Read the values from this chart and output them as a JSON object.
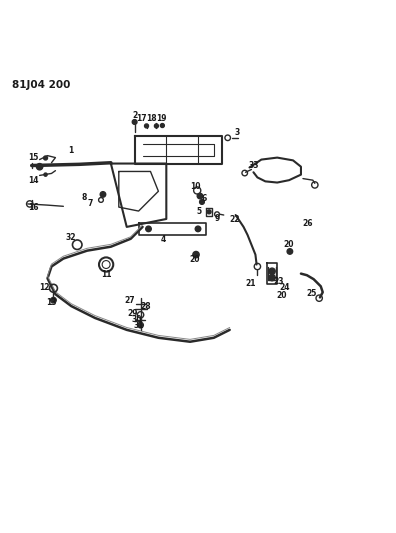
{
  "title": "81J04 200",
  "background_color": "#ffffff",
  "line_color": "#2a2a2a",
  "text_color": "#1a1a1a",
  "figsize": [
    3.96,
    5.33
  ],
  "dpi": 100
}
